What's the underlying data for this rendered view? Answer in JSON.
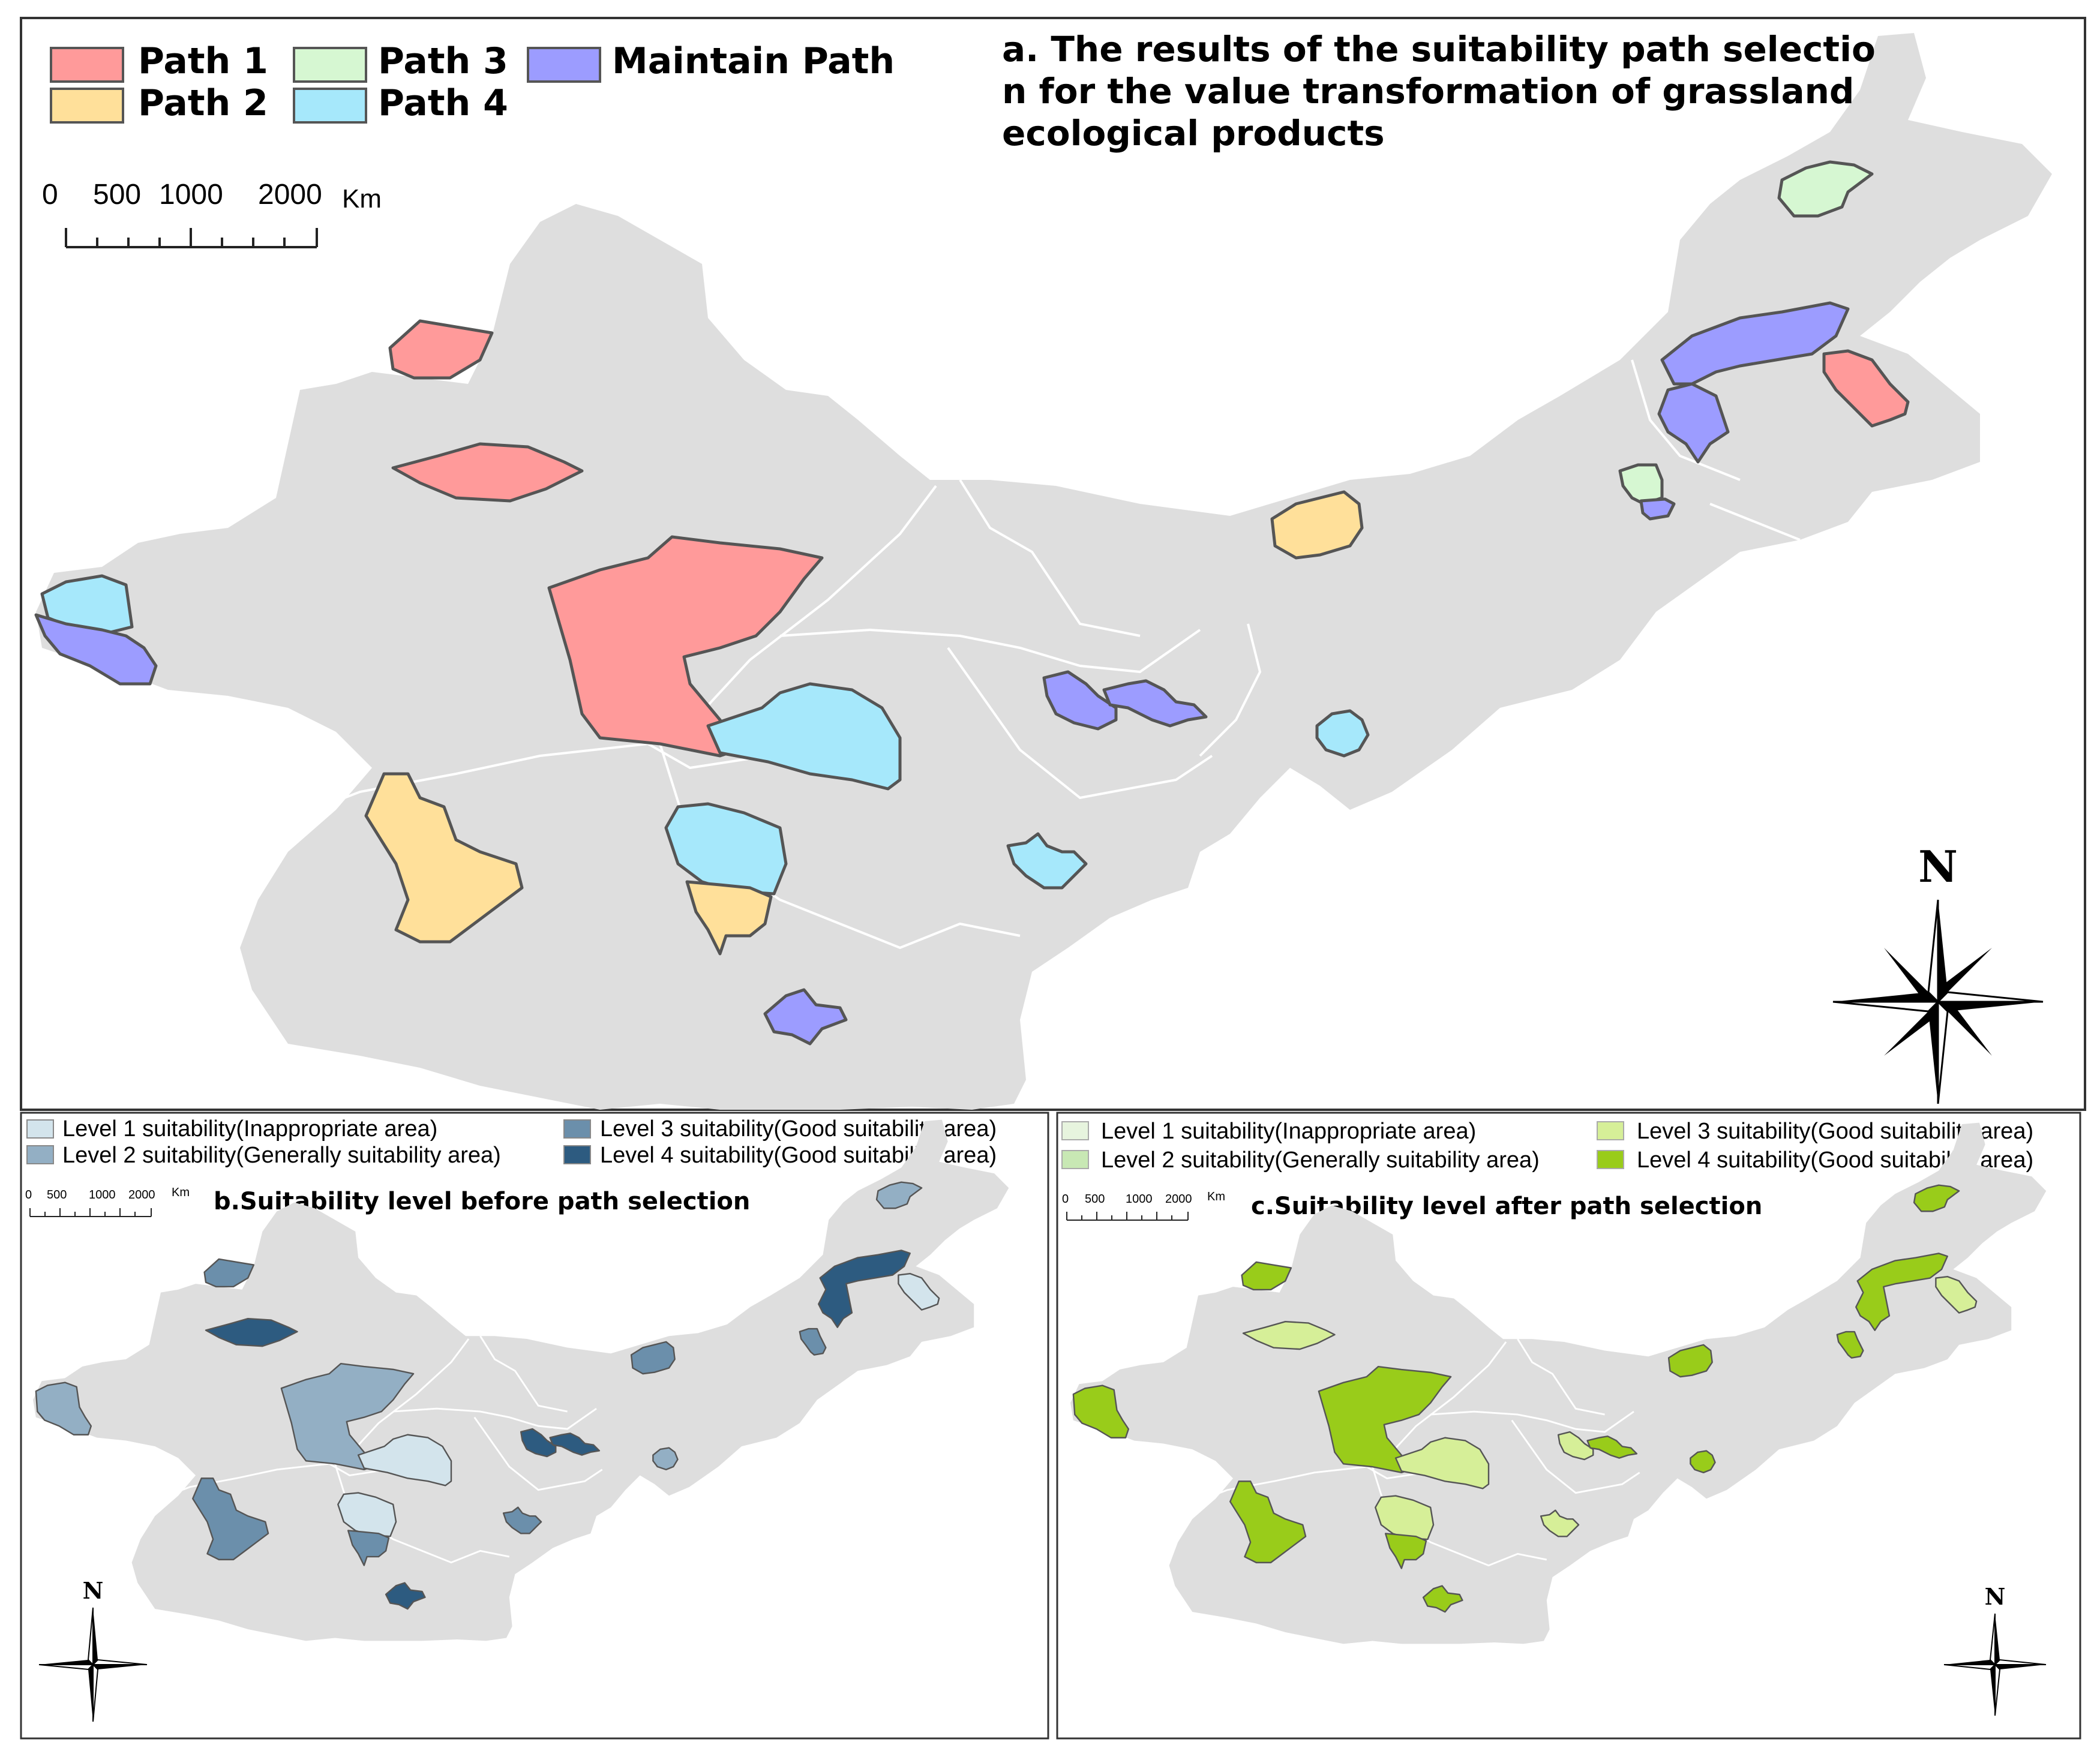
{
  "panel_a": {
    "title_lines": [
      "a. The results of the suitability path selectio",
      "n for the value transformation of grassland",
      "ecological products"
    ],
    "legend": [
      {
        "label": "Path 1",
        "color": "#ff9a9a"
      },
      {
        "label": "Path 2",
        "color": "#ffe09a"
      },
      {
        "label": "Path 3",
        "color": "#d6f7d2"
      },
      {
        "label": "Path 4",
        "color": "#a6e8fb"
      },
      {
        "label": "Maintain Path",
        "color": "#9c9cff"
      }
    ],
    "scale": {
      "ticks": [
        "0",
        "500",
        "1000",
        "2000"
      ],
      "unit": "Km"
    },
    "north": "N"
  },
  "panel_b": {
    "title": "b.Suitability level before path selection",
    "legend": [
      {
        "label": "Level 1 suitability(Inappropriate area)",
        "color": "#d3e4ec"
      },
      {
        "label": "Level 2 suitability(Generally suitability area)",
        "color": "#93afc4"
      },
      {
        "label": "Level 3 suitability(Good suitability area)",
        "color": "#6b8fab"
      },
      {
        "label": "Level 4 suitability(Good suitability area)",
        "color": "#2d5b80"
      }
    ],
    "scale": {
      "ticks": [
        "0",
        "500",
        "1000",
        "2000"
      ],
      "unit": "Km"
    },
    "north": "N"
  },
  "panel_c": {
    "title": "c.Suitability level after path selection",
    "legend": [
      {
        "label": "Level 1 suitability(Inappropriate area)",
        "color": "#e7f4de"
      },
      {
        "label": "Level 2 suitability(Generally suitability area)",
        "color": "#c8e8b4"
      },
      {
        "label": "Level 3 suitability(Good suitability area)",
        "color": "#d6ef98"
      },
      {
        "label": "Level 4 suitability(Good suitability area)",
        "color": "#99cc1a"
      }
    ],
    "scale": {
      "ticks": [
        "0",
        "500",
        "1000",
        "2000"
      ],
      "unit": "Km"
    },
    "north": "N"
  },
  "colors": {
    "land": "#dedede",
    "province_line": "#ffffff",
    "frame": "#333333"
  }
}
